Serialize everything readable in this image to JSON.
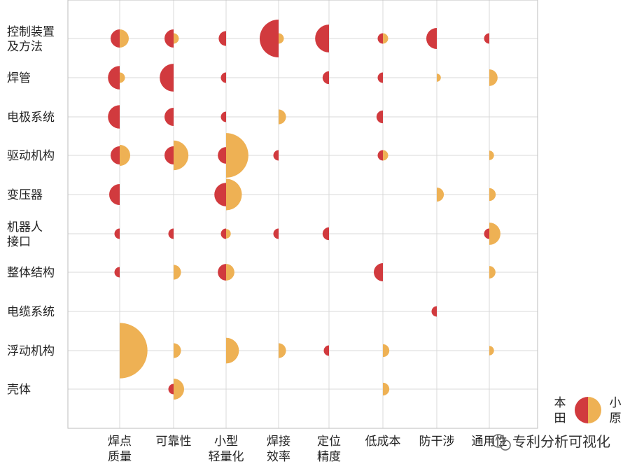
{
  "chart_data": {
    "type": "bubble-matrix",
    "title": "",
    "rows": [
      "控制装置\n及方法",
      "焊管",
      "电极系统",
      "驱动机构",
      "变压器",
      "机器人\n接口",
      "整体结构",
      "电缆系统",
      "浮动机构",
      "壳体"
    ],
    "columns": [
      "焊点\n质量",
      "可靠性",
      "小型\n轻量化",
      "焊接\n效率",
      "定位\n精度",
      "低成本",
      "防干涉",
      "通用性"
    ],
    "series": [
      {
        "name": "本田",
        "color": "#d13a3e",
        "side": "left",
        "values": [
          [
            3,
            3,
            2,
            13,
            7,
            1,
            4,
            1
          ],
          [
            5,
            7,
            1,
            0,
            1.5,
            1,
            0,
            0
          ],
          [
            5,
            3,
            1,
            0,
            0,
            1.5,
            0,
            0
          ],
          [
            3,
            3,
            2.5,
            1,
            0,
            1,
            0,
            0
          ],
          [
            4,
            0,
            5,
            0,
            0,
            0,
            0,
            0
          ],
          [
            1,
            1,
            1,
            1,
            1.5,
            0,
            0,
            1
          ],
          [
            1,
            0,
            2.5,
            0,
            0,
            3,
            0,
            0
          ],
          [
            0,
            0,
            0,
            0,
            0,
            0,
            1,
            0
          ],
          [
            0,
            0,
            0,
            0,
            1,
            0,
            0,
            0
          ],
          [
            0,
            1,
            0,
            0,
            0,
            0,
            0,
            0
          ]
        ]
      },
      {
        "name": "小原",
        "color": "#eeb154",
        "side": "right",
        "values": [
          [
            3,
            1,
            0,
            1,
            0,
            1,
            0,
            0
          ],
          [
            1,
            0,
            0,
            0,
            0,
            0,
            0.6,
            2.5
          ],
          [
            0,
            0,
            0,
            2,
            0,
            0,
            0,
            0
          ],
          [
            4,
            8,
            18,
            0,
            0,
            1,
            0,
            0.8
          ],
          [
            0,
            0,
            9,
            0,
            0,
            0,
            1.8,
            1.5
          ],
          [
            0,
            0,
            0.8,
            0,
            0,
            0,
            0,
            4.5
          ],
          [
            0,
            2,
            2.5,
            0,
            0,
            0,
            0,
            1.4
          ],
          [
            0,
            0,
            0,
            0,
            0,
            0,
            0,
            0
          ],
          [
            28,
            2,
            6,
            2,
            0,
            1.5,
            0,
            0.8
          ],
          [
            0,
            4,
            0,
            0,
            0,
            1.5,
            0,
            0
          ]
        ]
      }
    ],
    "legend": {
      "position": "bottom-right",
      "left_label": "本\n田",
      "right_label": "小\n原"
    },
    "grid": true
  },
  "watermark": {
    "text": "专利分析可视化",
    "icon": "wechat-icon"
  }
}
